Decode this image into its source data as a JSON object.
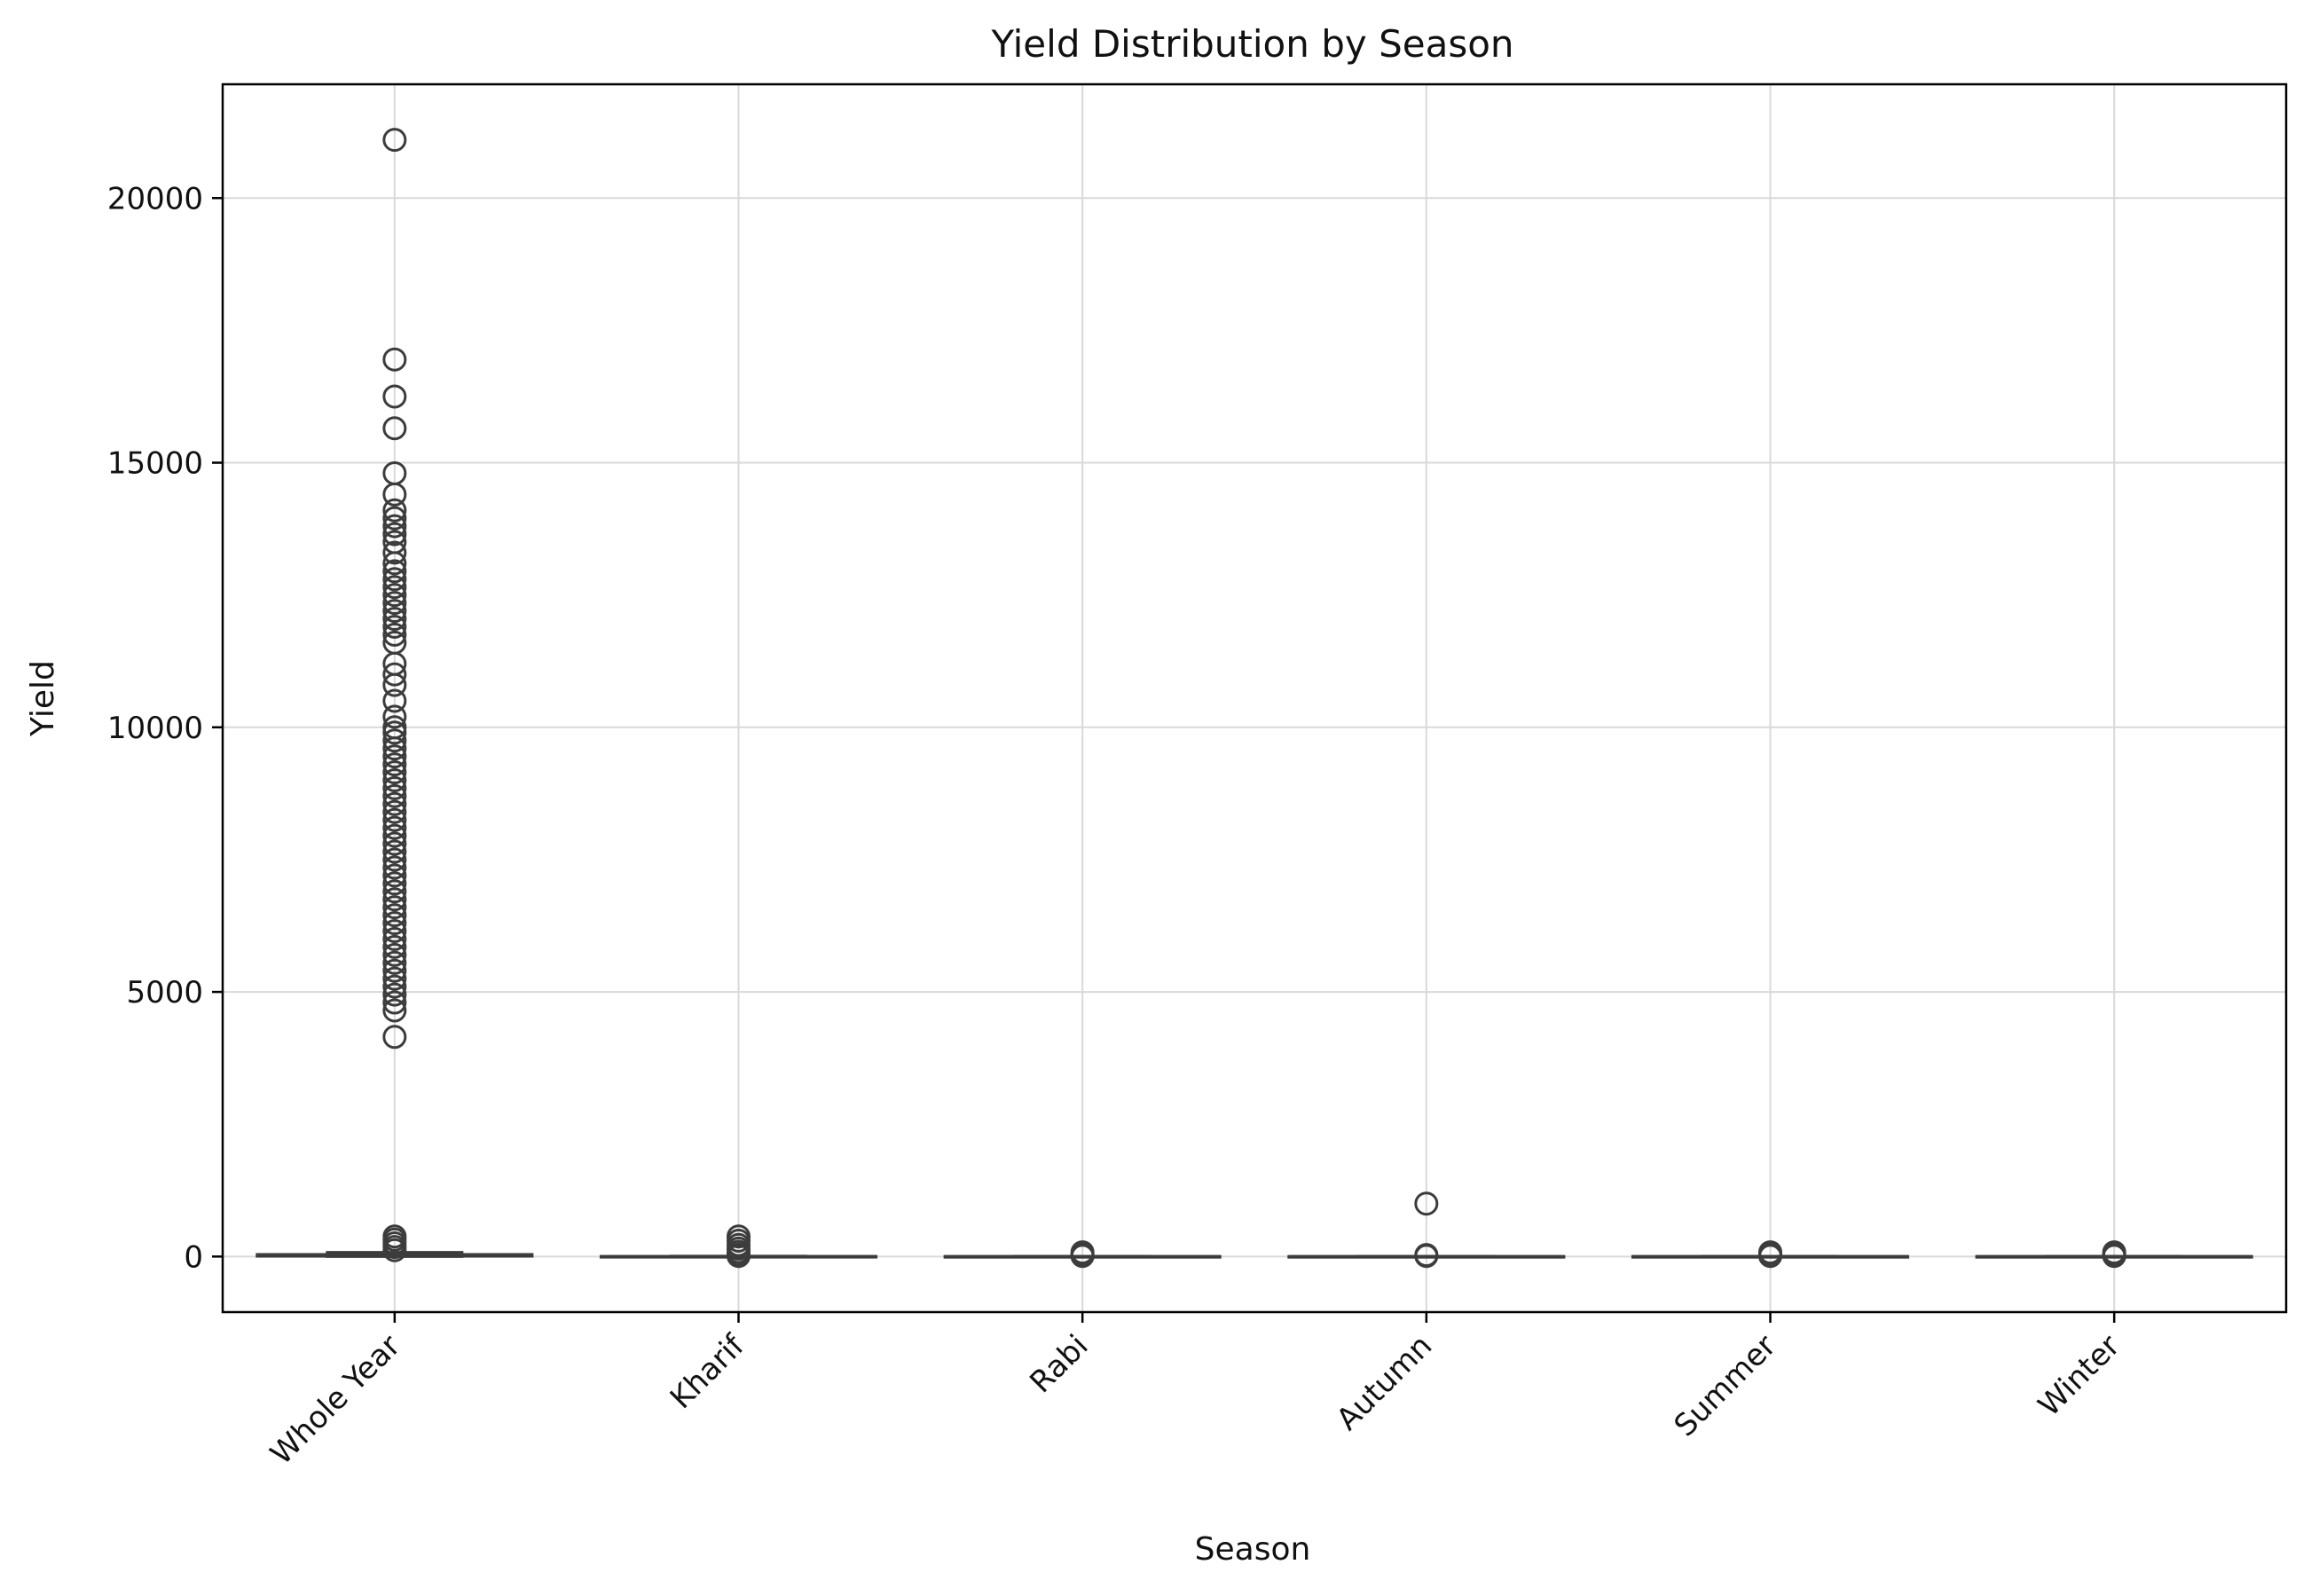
{
  "chart_data": {
    "type": "box",
    "title": "Yield Distribution by Season",
    "xlabel": "Season",
    "ylabel": "Yield",
    "categories": [
      "Whole Year",
      "Kharif",
      "Rabi",
      "Autumn",
      "Summer",
      "Winter"
    ],
    "ylim": [
      -1050,
      22150
    ],
    "yticks": [
      0,
      5000,
      10000,
      15000,
      20000
    ],
    "grid": true,
    "colors": {
      "box": "#3c3c3c",
      "grid": "#d9d9d9"
    },
    "boxes": [
      {
        "name": "Whole Year",
        "whislo": 0,
        "q1": 5,
        "med": 20,
        "q3": 40,
        "whishi": 80,
        "fliers": [
          21100,
          16950,
          16250,
          15650,
          14800,
          14400,
          14100,
          13950,
          13800,
          13650,
          13500,
          13300,
          13100,
          12950,
          12800,
          12650,
          12500,
          12350,
          12200,
          12050,
          11900,
          11750,
          11600,
          11200,
          11000,
          10800,
          10500,
          10200,
          10000,
          9900,
          9750,
          9600,
          9450,
          9300,
          9150,
          9000,
          8850,
          8700,
          8550,
          8400,
          8250,
          8100,
          7950,
          7800,
          7650,
          7500,
          7350,
          7200,
          7050,
          6900,
          6750,
          6600,
          6450,
          6300,
          6150,
          6000,
          5850,
          5700,
          5550,
          5400,
          5250,
          5100,
          4950,
          4800,
          4650,
          4150,
          380,
          320,
          250,
          180,
          120
        ]
      },
      {
        "name": "Kharif",
        "whislo": 0,
        "q1": 1,
        "med": 2,
        "q3": 4,
        "whishi": 8,
        "fliers": [
          380,
          300,
          220,
          150,
          90,
          40,
          10
        ]
      },
      {
        "name": "Rabi",
        "whislo": 0,
        "q1": 1,
        "med": 2,
        "q3": 3,
        "whishi": 6,
        "fliers": [
          80,
          50,
          20,
          10
        ]
      },
      {
        "name": "Autumn",
        "whislo": 0,
        "q1": 1,
        "med": 2,
        "q3": 3,
        "whishi": 5,
        "fliers": [
          1000,
          30,
          10
        ]
      },
      {
        "name": "Summer",
        "whislo": 0,
        "q1": 1,
        "med": 2,
        "q3": 3,
        "whishi": 6,
        "fliers": [
          80,
          50,
          20,
          10
        ]
      },
      {
        "name": "Winter",
        "whislo": 0,
        "q1": 1,
        "med": 2,
        "q3": 3,
        "whishi": 6,
        "fliers": [
          80,
          50,
          20,
          10
        ]
      }
    ]
  }
}
